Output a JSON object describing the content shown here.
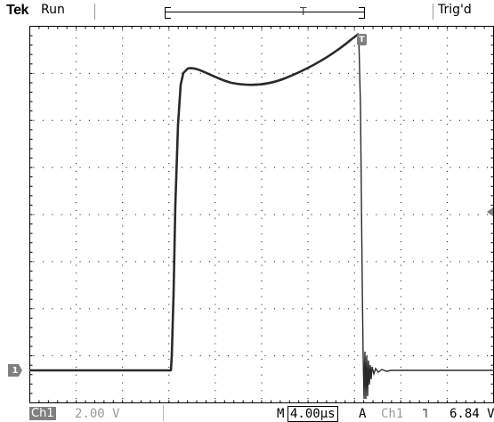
{
  "header": {
    "brand": "Tek",
    "run_state": "Run",
    "trigger_state": "Trig'd",
    "trigger_position_marker": "T"
  },
  "markers": {
    "channel": "1",
    "trigger": "T"
  },
  "readout": {
    "channel_label": "Ch1",
    "volts_per_div": "2.00 V",
    "m_label": "M",
    "timebase": "4.00µs",
    "a_label": "A",
    "trigger_source": "Ch1",
    "trigger_slope": "˥",
    "trigger_level": "6.84 V"
  },
  "colors": {
    "trace": "#2a2a2a",
    "graticule": "#000000",
    "marker": "#808080",
    "dim_text": "#9a9a9a"
  }
}
